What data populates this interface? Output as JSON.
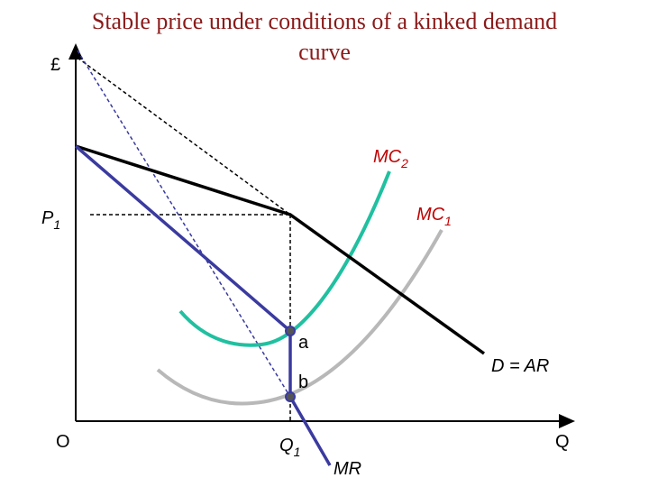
{
  "title": "Stable price under conditions of a kinked demand curve",
  "axes": {
    "y_label": "£",
    "x_label": "Q",
    "origin": "O"
  },
  "labels": {
    "p1": {
      "text": "P",
      "sub": "1"
    },
    "q1": {
      "text": "Q",
      "sub": "1"
    },
    "mc2": {
      "text": "MC",
      "sub": "2"
    },
    "mc1": {
      "text": "MC",
      "sub": "1"
    },
    "demand": "D = AR",
    "mr": "MR",
    "point_a": "a",
    "point_b": "b"
  }
}
